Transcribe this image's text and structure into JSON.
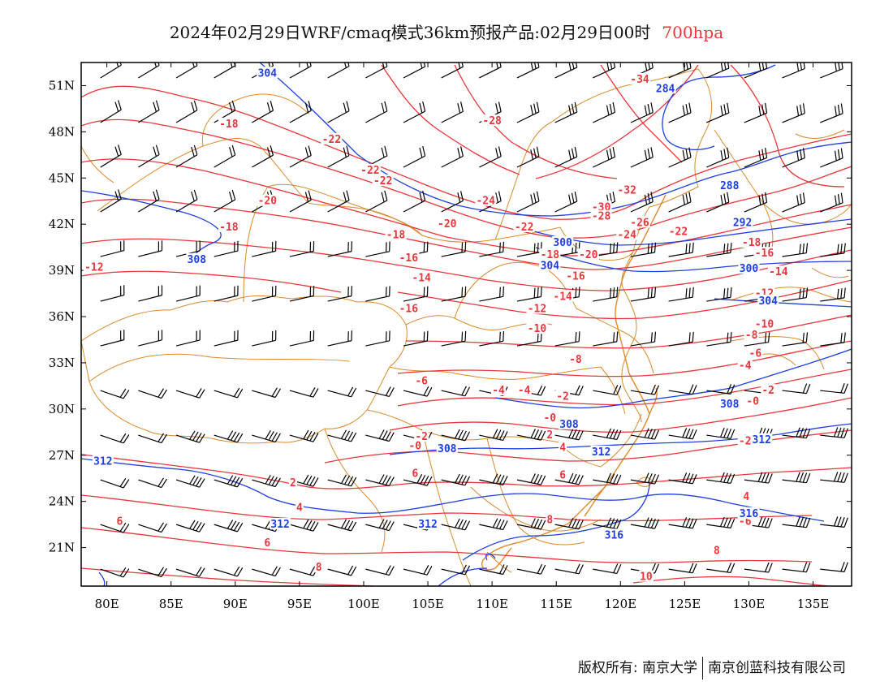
{
  "title": {
    "main": "2024年02月29日WRF/cmaq模式36km预报产品:02月29日00时",
    "level": "700hpa"
  },
  "colors": {
    "temperature": "#e8363a",
    "height": "#1e3fe0",
    "border": "#d98a2e",
    "wind": "#000000",
    "frame": "#000000"
  },
  "axes": {
    "lon_labels": [
      "80E",
      "85E",
      "90E",
      "95E",
      "100E",
      "105E",
      "110E",
      "115E",
      "120E",
      "125E",
      "130E",
      "135E"
    ],
    "lat_labels": [
      "51N",
      "48N",
      "45N",
      "42N",
      "39N",
      "36N",
      "33N",
      "30N",
      "27N",
      "24N",
      "21N"
    ],
    "lon_values": [
      80,
      85,
      90,
      95,
      100,
      105,
      110,
      115,
      120,
      125,
      130,
      135
    ],
    "lat_values": [
      51,
      48,
      45,
      42,
      39,
      36,
      33,
      30,
      27,
      24,
      21
    ],
    "lon_range": [
      78,
      138
    ],
    "lat_range": [
      18.5,
      52.5
    ]
  },
  "temperature_labels": [
    {
      "text": "-18",
      "lon": 89.5,
      "lat": 48.5
    },
    {
      "text": "-22",
      "lon": 97.5,
      "lat": 47.5
    },
    {
      "text": "-22",
      "lon": 100.5,
      "lat": 45.5
    },
    {
      "text": "-22",
      "lon": 101.5,
      "lat": 44.8
    },
    {
      "text": "-20",
      "lon": 92.5,
      "lat": 43.5
    },
    {
      "text": "-18",
      "lon": 89.5,
      "lat": 41.8
    },
    {
      "text": "-12",
      "lon": 79,
      "lat": 39.2
    },
    {
      "text": "-18",
      "lon": 102.5,
      "lat": 41.3
    },
    {
      "text": "-16",
      "lon": 103.5,
      "lat": 39.8
    },
    {
      "text": "-14",
      "lon": 104.5,
      "lat": 38.5
    },
    {
      "text": "-16",
      "lon": 103.5,
      "lat": 36.5
    },
    {
      "text": "-20",
      "lon": 106.5,
      "lat": 42
    },
    {
      "text": "-24",
      "lon": 109.5,
      "lat": 43.5
    },
    {
      "text": "-28",
      "lon": 110,
      "lat": 48.7
    },
    {
      "text": "-34",
      "lon": 121.5,
      "lat": 51.4
    },
    {
      "text": "-32",
      "lon": 120.5,
      "lat": 44.2
    },
    {
      "text": "-30",
      "lon": 118.5,
      "lat": 43.1
    },
    {
      "text": "-28",
      "lon": 118.5,
      "lat": 42.5
    },
    {
      "text": "-26",
      "lon": 121.5,
      "lat": 42.1
    },
    {
      "text": "-24",
      "lon": 120.5,
      "lat": 41.3
    },
    {
      "text": "-22",
      "lon": 124.5,
      "lat": 41.5
    },
    {
      "text": "-22",
      "lon": 112.5,
      "lat": 41.8
    },
    {
      "text": "-20",
      "lon": 117.5,
      "lat": 40
    },
    {
      "text": "-18",
      "lon": 114.5,
      "lat": 40
    },
    {
      "text": "-16",
      "lon": 116.5,
      "lat": 38.6
    },
    {
      "text": "-14",
      "lon": 115.5,
      "lat": 37.3
    },
    {
      "text": "-12",
      "lon": 113.5,
      "lat": 36.5
    },
    {
      "text": "-10",
      "lon": 113.5,
      "lat": 35.2
    },
    {
      "text": "-8",
      "lon": 116.5,
      "lat": 33.2
    },
    {
      "text": "-18",
      "lon": 130.2,
      "lat": 40.8
    },
    {
      "text": "-16",
      "lon": 131.2,
      "lat": 40.1
    },
    {
      "text": "-14",
      "lon": 132.3,
      "lat": 38.9
    },
    {
      "text": "-12",
      "lon": 131.2,
      "lat": 37.5
    },
    {
      "text": "-10",
      "lon": 131.2,
      "lat": 35.5
    },
    {
      "text": "-8",
      "lon": 130.2,
      "lat": 34.8
    },
    {
      "text": "-6",
      "lon": 130.5,
      "lat": 33.6
    },
    {
      "text": "-4",
      "lon": 129.7,
      "lat": 32.8
    },
    {
      "text": "-2",
      "lon": 131.5,
      "lat": 31.2
    },
    {
      "text": "-0",
      "lon": 130.3,
      "lat": 30.5
    },
    {
      "text": "-4",
      "lon": 112.5,
      "lat": 31.2
    },
    {
      "text": "-2",
      "lon": 115.5,
      "lat": 30.8
    },
    {
      "text": "-0",
      "lon": 114.5,
      "lat": 29.4
    },
    {
      "text": "-6",
      "lon": 104.5,
      "lat": 31.8
    },
    {
      "text": "-4",
      "lon": 110.5,
      "lat": 31.2
    },
    {
      "text": "-2",
      "lon": 104.5,
      "lat": 28.2
    },
    {
      "text": "-0",
      "lon": 104,
      "lat": 27.6
    },
    {
      "text": "2",
      "lon": 114.5,
      "lat": 28.3
    },
    {
      "text": "4",
      "lon": 115.5,
      "lat": 27.5
    },
    {
      "text": "6",
      "lon": 104,
      "lat": 25.8
    },
    {
      "text": "6",
      "lon": 115.5,
      "lat": 25.7
    },
    {
      "text": "2",
      "lon": 94.5,
      "lat": 25.2
    },
    {
      "text": "4",
      "lon": 95,
      "lat": 23.6
    },
    {
      "text": "6",
      "lon": 81,
      "lat": 22.7
    },
    {
      "text": "6",
      "lon": 92.5,
      "lat": 21.3
    },
    {
      "text": "8",
      "lon": 96.5,
      "lat": 19.7
    },
    {
      "text": "8",
      "lon": 114.5,
      "lat": 22.8
    },
    {
      "text": "8",
      "lon": 127.5,
      "lat": 20.8
    },
    {
      "text": "10",
      "lon": 122,
      "lat": 19.1
    },
    {
      "text": "-2",
      "lon": 129.7,
      "lat": 27.9
    },
    {
      "text": "4",
      "lon": 129.8,
      "lat": 24.3
    },
    {
      "text": "-6",
      "lon": 129.7,
      "lat": 22.7
    }
  ],
  "height_labels": [
    {
      "text": "304",
      "lon": 92.5,
      "lat": 51.8
    },
    {
      "text": "284",
      "lon": 123.5,
      "lat": 50.8
    },
    {
      "text": "288",
      "lon": 128.5,
      "lat": 44.5
    },
    {
      "text": "292",
      "lon": 129.5,
      "lat": 42.1
    },
    {
      "text": "300",
      "lon": 115.5,
      "lat": 40.8
    },
    {
      "text": "304",
      "lon": 114.5,
      "lat": 39.3
    },
    {
      "text": "308",
      "lon": 87,
      "lat": 39.7
    },
    {
      "text": "300",
      "lon": 130,
      "lat": 39.1
    },
    {
      "text": "304",
      "lon": 131.5,
      "lat": 37
    },
    {
      "text": "308",
      "lon": 116,
      "lat": 29
    },
    {
      "text": "308",
      "lon": 128.5,
      "lat": 30.3
    },
    {
      "text": "312",
      "lon": 131,
      "lat": 28
    },
    {
      "text": "308",
      "lon": 106.5,
      "lat": 27.4
    },
    {
      "text": "312",
      "lon": 118.5,
      "lat": 27.2
    },
    {
      "text": "312",
      "lon": 79.7,
      "lat": 26.6
    },
    {
      "text": "312",
      "lon": 93.5,
      "lat": 22.5
    },
    {
      "text": "312",
      "lon": 105,
      "lat": 22.5
    },
    {
      "text": "316",
      "lon": 119.5,
      "lat": 21.8
    },
    {
      "text": "316",
      "lon": 130,
      "lat": 23.2
    }
  ],
  "footer": {
    "copyright": "版权所有: 南京大学",
    "company": "南京创蓝科技有限公司"
  }
}
